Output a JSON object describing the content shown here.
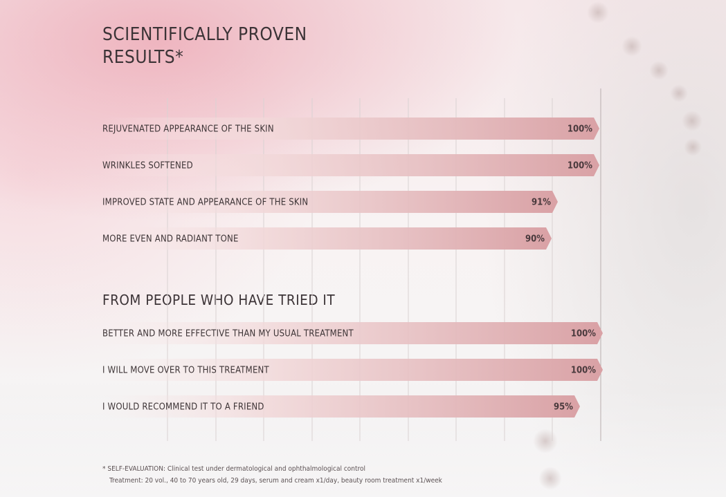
{
  "title": "SCIENTIFICALLY PROVEN RESULTS*",
  "section2_title": "FROM PEOPLE WHO HAVE TRIED IT",
  "footnote": {
    "line1": "* SELF-EVALUATION: Clinical test under dermatological and ophthalmological control",
    "line2": "Treatment: 20 vol., 40 to 70 years old, 29 days, serum and cream x1/day, beauty room treatment x1/week"
  },
  "colors": {
    "bar_start": "#f8e8e8",
    "bar_end": "#d9a1a5",
    "gridline": "#d9d2d2",
    "text": "#3e3537"
  },
  "chart_data": [
    {
      "type": "bar",
      "orientation": "horizontal",
      "title": "SCIENTIFICALLY PROVEN RESULTS*",
      "unit": "%",
      "xlim": [
        0,
        100
      ],
      "categories": [
        "REJUVENATED APPEARANCE OF THE SKIN",
        "WRINKLES SOFTENED",
        "IMPROVED STATE AND APPEARANCE OF THE SKIN",
        "MORE EVEN AND RADIANT TONE"
      ],
      "values": [
        100,
        100,
        91,
        90
      ],
      "value_labels": [
        "100%",
        "100%",
        "91%",
        "90%"
      ],
      "grid": true
    },
    {
      "type": "bar",
      "orientation": "horizontal",
      "title": "FROM PEOPLE WHO HAVE TRIED IT",
      "unit": "%",
      "xlim": [
        0,
        100
      ],
      "categories": [
        "BETTER AND MORE EFFECTIVE THAN MY USUAL TREATMENT",
        "I WILL MOVE OVER TO THIS TREATMENT",
        "I WOULD RECOMMEND IT TO A FRIEND"
      ],
      "values": [
        100,
        100,
        95
      ],
      "value_labels": [
        "100%",
        "100%",
        "95%"
      ],
      "grid": true
    }
  ]
}
